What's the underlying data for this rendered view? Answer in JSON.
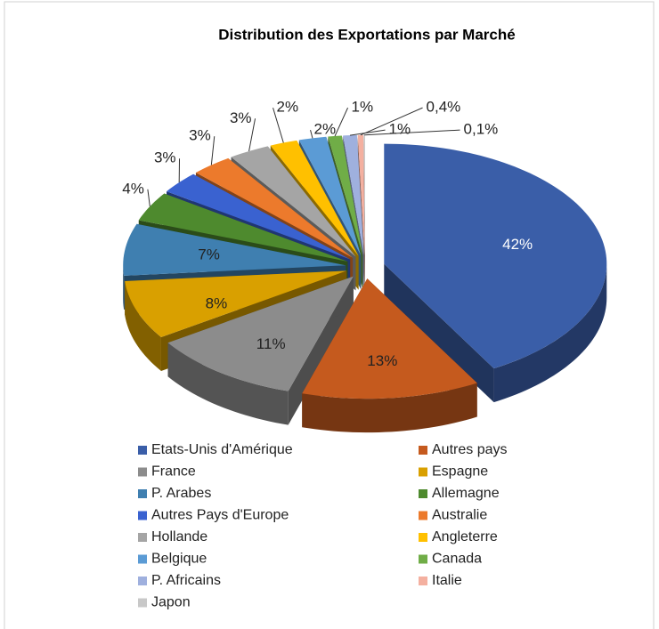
{
  "chart_data": {
    "type": "pie3d",
    "title": "Distribution des Exportations par Marché",
    "categories": [
      "Etats-Unis d'Amérique",
      "Autres pays",
      "France",
      "Espagne",
      "P. Arabes",
      "Allemagne",
      "Autres Pays d'Europe",
      "Australie",
      "Hollande",
      "Angleterre",
      "Belgique",
      "Canada",
      "P. Africains",
      "Italie",
      "Japon"
    ],
    "values": [
      42,
      13,
      11,
      8,
      7,
      4,
      3,
      3,
      3,
      2,
      2,
      1,
      1,
      0.4,
      0.1
    ],
    "value_labels": [
      "42%",
      "13%",
      "11%",
      "8%",
      "7%",
      "4%",
      "3%",
      "3%",
      "3%",
      "2%",
      "2%",
      "1%",
      "1%",
      "0,4%",
      "0,1%"
    ],
    "colors": [
      "#3a5ea8",
      "#c55a1e",
      "#8c8c8c",
      "#d9a000",
      "#3f7fb0",
      "#4e8a2e",
      "#3a62d0",
      "#ec7a2c",
      "#a5a5a5",
      "#ffc000",
      "#5b9bd5",
      "#70ad47",
      "#9fb0de",
      "#f4b0a0",
      "#c8c8c8"
    ],
    "legend": "bottom"
  }
}
